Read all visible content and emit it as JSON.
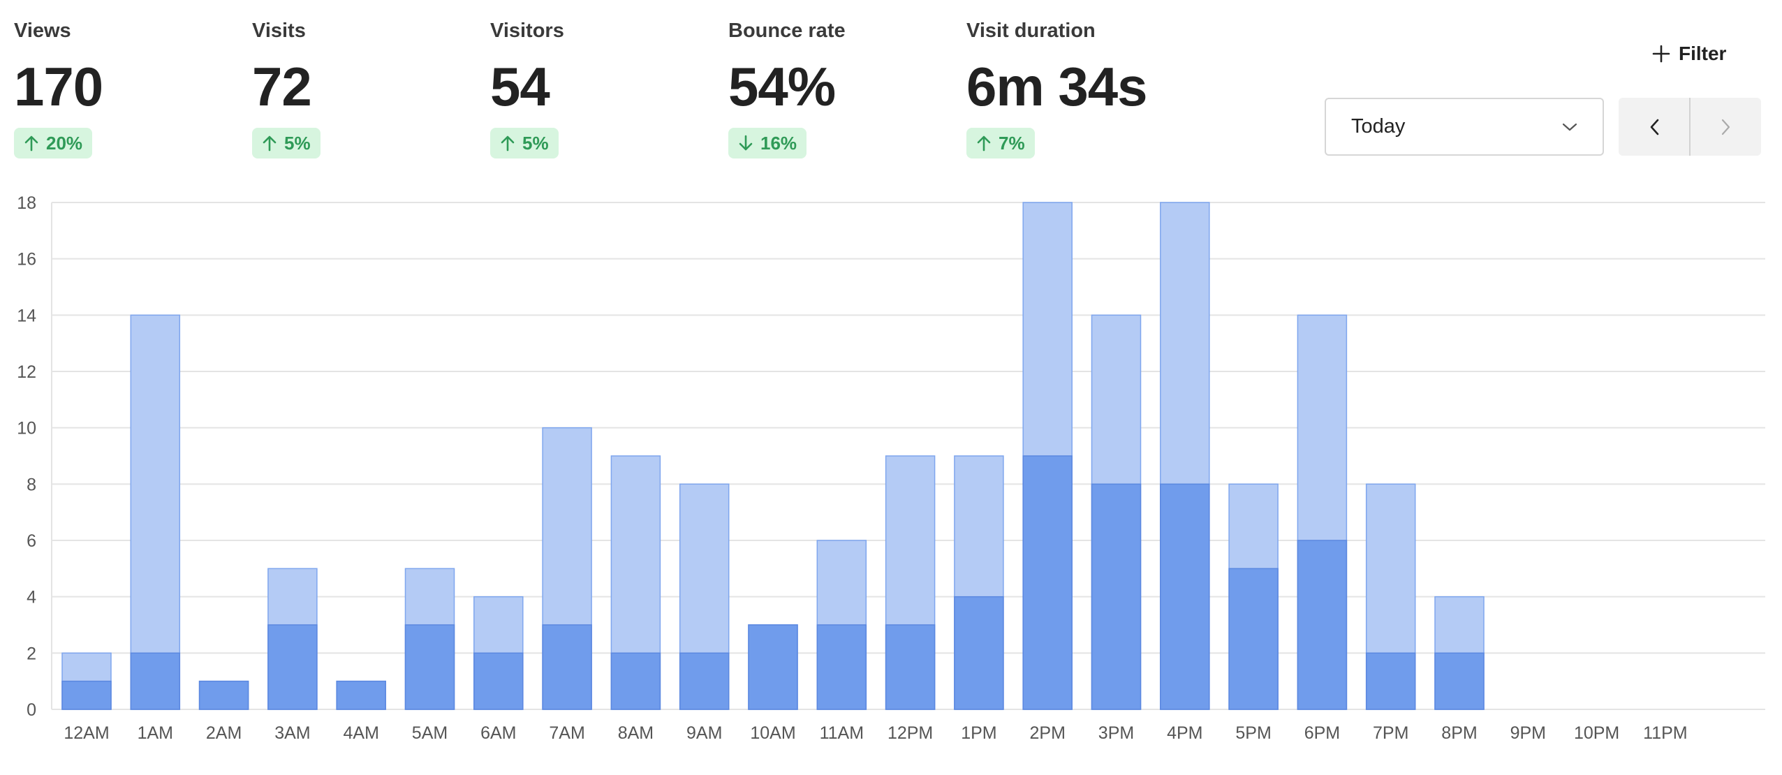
{
  "metrics": [
    {
      "label": "Views",
      "value": "170",
      "change": "20%",
      "direction": "up"
    },
    {
      "label": "Visits",
      "value": "72",
      "change": "5%",
      "direction": "up"
    },
    {
      "label": "Visitors",
      "value": "54",
      "change": "5%",
      "direction": "up"
    },
    {
      "label": "Bounce rate",
      "value": "54%",
      "change": "16%",
      "direction": "down"
    },
    {
      "label": "Visit duration",
      "value": "6m 34s",
      "change": "7%",
      "direction": "up"
    }
  ],
  "toolbar": {
    "filter_label": "Filter",
    "date_range": "Today"
  },
  "icons": {
    "filter": "plus-icon",
    "dropdown": "chevron-down-icon",
    "prev": "chevron-left-icon",
    "next": "chevron-right-icon"
  },
  "colors": {
    "views_bar": "#b4cbf5",
    "views_border": "#7fa6ee",
    "visitors_bar": "#709cec",
    "visitors_border": "#5b88e0",
    "badge_bg": "#d7f5df",
    "badge_text": "#2f9a57",
    "grid": "#e4e4e4"
  },
  "chart_data": {
    "type": "bar",
    "title": "",
    "xlabel": "",
    "ylabel": "",
    "ylim": [
      0,
      18
    ],
    "yticks": [
      0,
      2,
      4,
      6,
      8,
      10,
      12,
      14,
      16,
      18
    ],
    "categories": [
      "12AM",
      "1AM",
      "2AM",
      "3AM",
      "4AM",
      "5AM",
      "6AM",
      "7AM",
      "8AM",
      "9AM",
      "10AM",
      "11AM",
      "12PM",
      "1PM",
      "2PM",
      "3PM",
      "4PM",
      "5PM",
      "6PM",
      "7PM",
      "8PM",
      "9PM",
      "10PM",
      "11PM"
    ],
    "series": [
      {
        "name": "Views",
        "values": [
          2,
          14,
          1,
          5,
          1,
          5,
          4,
          10,
          9,
          8,
          3,
          6,
          9,
          9,
          18,
          14,
          18,
          8,
          14,
          8,
          4,
          0,
          0,
          0
        ]
      },
      {
        "name": "Visitors",
        "values": [
          1,
          2,
          1,
          3,
          1,
          3,
          2,
          3,
          2,
          2,
          3,
          3,
          3,
          4,
          9,
          8,
          8,
          5,
          6,
          2,
          2,
          0,
          0,
          0
        ]
      }
    ]
  }
}
